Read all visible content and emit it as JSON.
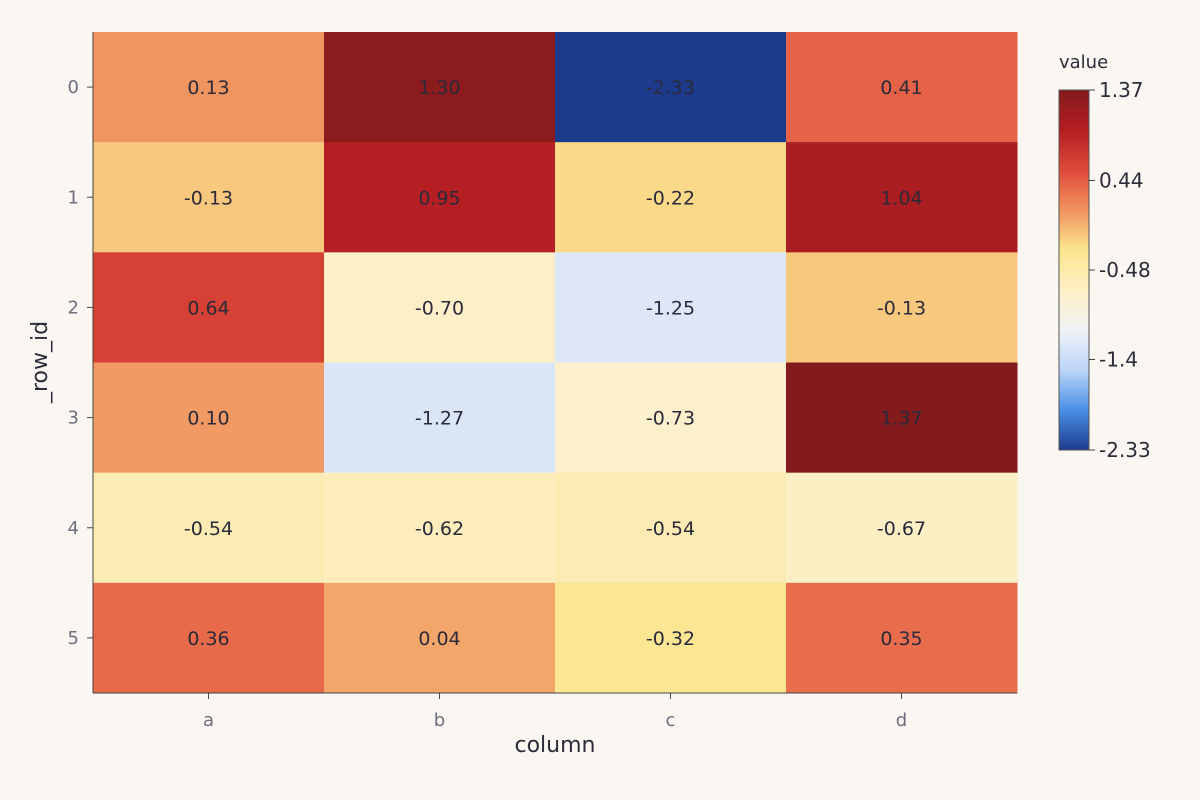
{
  "chart_data": {
    "type": "heatmap",
    "xlabel": "column",
    "ylabel": "_row_id",
    "x_categories": [
      "a",
      "b",
      "c",
      "d"
    ],
    "y_categories": [
      "0",
      "1",
      "2",
      "3",
      "4",
      "5"
    ],
    "values": [
      [
        0.13,
        1.3,
        -2.33,
        0.41
      ],
      [
        -0.13,
        0.95,
        -0.22,
        1.04
      ],
      [
        0.64,
        -0.7,
        -1.25,
        -0.13
      ],
      [
        0.1,
        -1.27,
        -0.73,
        1.37
      ],
      [
        -0.54,
        -0.62,
        -0.54,
        -0.67
      ],
      [
        0.36,
        0.04,
        -0.32,
        0.35
      ]
    ],
    "value_labels": [
      [
        "0.13",
        "1.30",
        "-2.33",
        "0.41"
      ],
      [
        "-0.13",
        "0.95",
        "-0.22",
        "1.04"
      ],
      [
        "0.64",
        "-0.70",
        "-1.25",
        "-0.13"
      ],
      [
        "0.10",
        "-1.27",
        "-0.73",
        "1.37"
      ],
      [
        "-0.54",
        "-0.62",
        "-0.54",
        "-0.67"
      ],
      [
        "0.36",
        "0.04",
        "-0.32",
        "0.35"
      ]
    ],
    "zlim": [
      -2.33,
      1.37
    ],
    "colorscale": [
      "#1c3b8c",
      "#4a8fe6",
      "#bcd5f8",
      "#f0f2f6",
      "#fdefc6",
      "#fbe58e",
      "#f0935f",
      "#e04a3a",
      "#b41e22",
      "#831a1c"
    ],
    "legend": {
      "title": "value",
      "placement": "right",
      "ticks": [
        "1.37",
        "0.44",
        "-0.48",
        "-1.4",
        "-2.33"
      ],
      "tick_values": [
        1.37,
        0.44,
        -0.48,
        -1.4,
        -2.33
      ]
    },
    "grid": false
  }
}
